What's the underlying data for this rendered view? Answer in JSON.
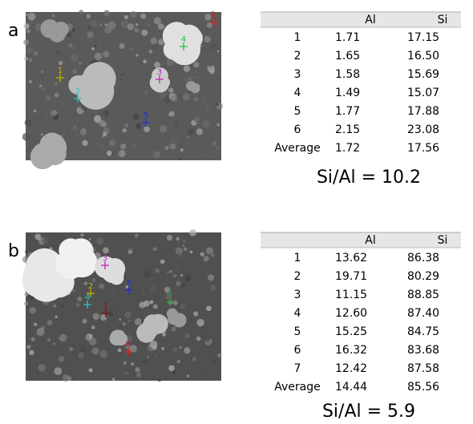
{
  "panels": [
    {
      "label": "a",
      "markers": [
        "1",
        "2",
        "3",
        "4",
        "5",
        "6"
      ],
      "table": {
        "header": [
          "Al",
          "Si"
        ],
        "rows": [
          [
            "1",
            "1.71",
            "17.15"
          ],
          [
            "2",
            "1.65",
            "16.50"
          ],
          [
            "3",
            "1.58",
            "15.69"
          ],
          [
            "4",
            "1.49",
            "15.07"
          ],
          [
            "5",
            "1.77",
            "17.88"
          ],
          [
            "6",
            "2.15",
            "23.08"
          ],
          [
            "Average",
            "1.72",
            "17.56"
          ]
        ]
      },
      "ratio": "Si/Al = 10.2"
    },
    {
      "label": "b",
      "markers": [
        "1",
        "2",
        "3",
        "4",
        "5",
        "6",
        "7"
      ],
      "table": {
        "header": [
          "Al",
          "Si"
        ],
        "rows": [
          [
            "1",
            "13.62",
            "86.38"
          ],
          [
            "2",
            "19.71",
            "80.29"
          ],
          [
            "3",
            "11.15",
            "88.85"
          ],
          [
            "4",
            "12.60",
            "87.40"
          ],
          [
            "5",
            "15.25",
            "84.75"
          ],
          [
            "6",
            "16.32",
            "83.68"
          ],
          [
            "7",
            "12.42",
            "87.58"
          ],
          [
            "Average",
            "14.44",
            "85.56"
          ]
        ]
      },
      "ratio": "Si/Al = 5.9"
    }
  ]
}
